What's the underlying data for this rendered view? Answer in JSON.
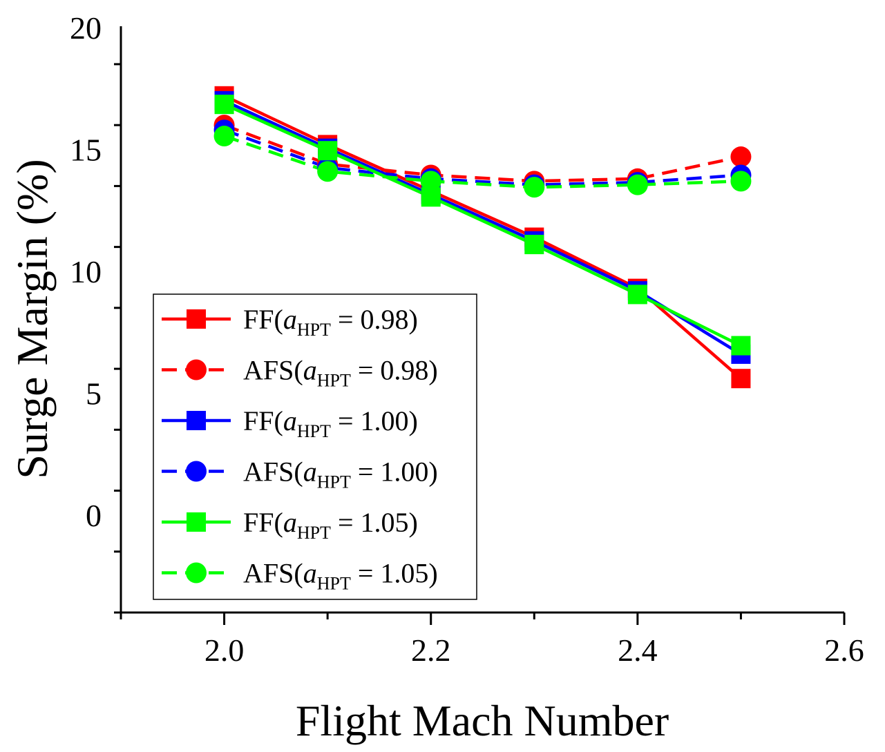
{
  "chart_data": {
    "type": "line",
    "title": "",
    "xlabel": "Flight Mach Number",
    "ylabel": "Surge Margin (%)",
    "xlim": [
      1.9,
      2.6
    ],
    "ylim": [
      -4,
      20
    ],
    "x_ticks": [
      "2.0",
      "2.2",
      "2.4",
      "2.6"
    ],
    "y_ticks": [
      "0",
      "5",
      "10",
      "15",
      "20"
    ],
    "x": [
      2.0,
      2.1,
      2.2,
      2.3,
      2.4,
      2.5
    ],
    "series": [
      {
        "name": "FF(a_HPT = 0.98)",
        "label_prefix": "FF(",
        "label_var": "a",
        "label_sub": "HPT",
        "label_suffix": " = 0.98)",
        "color": "#ff0000",
        "dash": "solid",
        "marker": "square",
        "values": [
          17.2,
          15.2,
          13.3,
          11.4,
          9.3,
          5.6
        ]
      },
      {
        "name": "AFS(a_HPT = 0.98)",
        "label_prefix": "AFS(",
        "label_var": "a",
        "label_sub": "HPT",
        "label_suffix": " = 0.98)",
        "color": "#ff0000",
        "dash": "dashed",
        "marker": "circle",
        "values": [
          16.0,
          14.4,
          13.95,
          13.7,
          13.8,
          14.7
        ]
      },
      {
        "name": "FF(a_HPT = 1.00)",
        "label_prefix": "FF(",
        "label_var": "a",
        "label_sub": "HPT",
        "label_suffix": " = 1.00)",
        "color": "#0000ff",
        "dash": "solid",
        "marker": "square",
        "values": [
          17.0,
          15.05,
          13.15,
          11.25,
          9.2,
          6.6
        ]
      },
      {
        "name": "AFS(a_HPT = 1.00)",
        "label_prefix": "AFS(",
        "label_var": "a",
        "label_sub": "HPT",
        "label_suffix": " = 1.00)",
        "color": "#0000ff",
        "dash": "dashed",
        "marker": "circle",
        "values": [
          15.8,
          14.25,
          13.8,
          13.55,
          13.65,
          13.95
        ]
      },
      {
        "name": "FF(a_HPT = 1.05)",
        "label_prefix": "FF(",
        "label_var": "a",
        "label_sub": "HPT",
        "label_suffix": " = 1.05)",
        "color": "#00ff00",
        "dash": "solid",
        "marker": "square",
        "values": [
          16.85,
          14.95,
          13.05,
          11.1,
          9.05,
          6.95
        ]
      },
      {
        "name": "AFS(a_HPT = 1.05)",
        "label_prefix": "AFS(",
        "label_var": "a",
        "label_sub": "HPT",
        "label_suffix": " = 1.05)",
        "color": "#00ff00",
        "dash": "dashed",
        "marker": "circle",
        "values": [
          15.55,
          14.1,
          13.7,
          13.45,
          13.55,
          13.7
        ]
      }
    ],
    "legend_position": "lower-left"
  }
}
